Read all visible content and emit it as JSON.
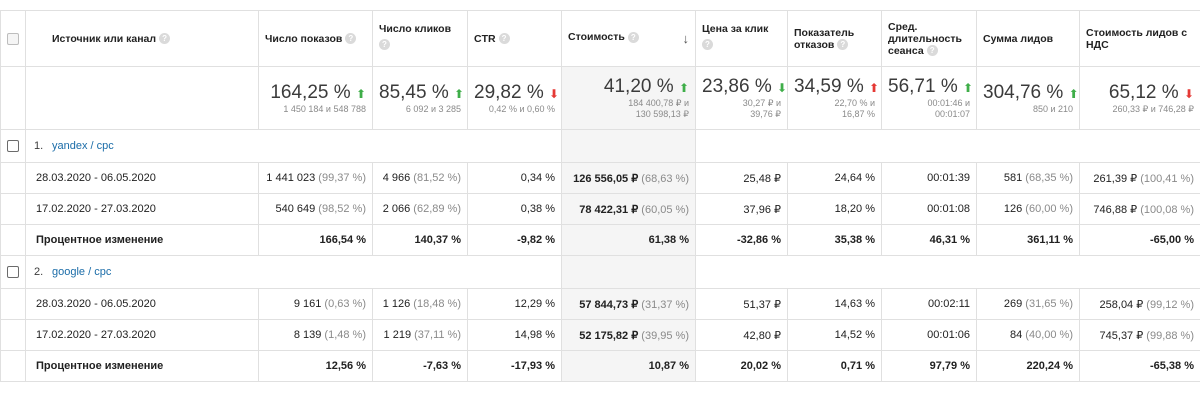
{
  "columns": {
    "source": "Источник или канал",
    "impressions": "Число показов",
    "clicks": "Число кликов",
    "ctr": "CTR",
    "cost": "Стоимость",
    "cpc": "Цена за клик",
    "bounce": "Показатель отказов",
    "session": "Сред. длительность сеанса",
    "leads": "Сумма лидов",
    "lead_cost": "Стоимость лидов с НДС"
  },
  "help_glyph": "?",
  "sort_glyph": "↓",
  "colors": {
    "up": "#3fae49",
    "down": "#e53935",
    "link": "#1a6ca8"
  },
  "summary": {
    "impressions": {
      "pct": "164,25 %",
      "dir": "up",
      "sub": "1 450 184 и 548 788"
    },
    "clicks": {
      "pct": "85,45 %",
      "dir": "up",
      "sub": "6 092 и 3 285"
    },
    "ctr": {
      "pct": "29,82 %",
      "dir": "down",
      "sub": "0,42 % и 0,60 %"
    },
    "cost": {
      "pct": "41,20 %",
      "dir": "up",
      "sub1": "184 400,78 ₽ и",
      "sub2": "130 598,13 ₽"
    },
    "cpc": {
      "pct": "23,86 %",
      "dir": "down",
      "sub1": "30,27 ₽ и",
      "sub2": "39,76 ₽"
    },
    "bounce": {
      "pct": "34,59 %",
      "dir": "up-red",
      "sub1": "22,70 % и",
      "sub2": "16,87 %"
    },
    "session": {
      "pct": "56,71 %",
      "dir": "up",
      "sub1": "00:01:46 и",
      "sub2": "00:01:07"
    },
    "leads": {
      "pct": "304,76 %",
      "dir": "up",
      "sub": "850 и 210"
    },
    "lead_cost": {
      "pct": "65,12 %",
      "dir": "down",
      "sub": "260,33 ₽ и 746,28 ₽"
    }
  },
  "groups": [
    {
      "num": "1.",
      "name": "yandex / cpc",
      "rows": [
        {
          "label": "28.03.2020 - 06.05.2020",
          "impressions": "1 441 023",
          "impressions_pct": "(99,37 %)",
          "clicks": "4 966",
          "clicks_pct": "(81,52 %)",
          "ctr": "0,34 %",
          "cost": "126 556,05 ₽",
          "cost_pct": "(68,63 %)",
          "cpc": "25,48 ₽",
          "bounce": "24,64 %",
          "session": "00:01:39",
          "leads": "581",
          "leads_pct": "(68,35 %)",
          "lead_cost": "261,39 ₽",
          "lead_cost_pct": "(100,41 %)"
        },
        {
          "label": "17.02.2020 - 27.03.2020",
          "impressions": "540 649",
          "impressions_pct": "(98,52 %)",
          "clicks": "2 066",
          "clicks_pct": "(62,89 %)",
          "ctr": "0,38 %",
          "cost": "78 422,31 ₽",
          "cost_pct": "(60,05 %)",
          "cpc": "37,96 ₽",
          "bounce": "18,20 %",
          "session": "00:01:08",
          "leads": "126",
          "leads_pct": "(60,00 %)",
          "lead_cost": "746,88 ₽",
          "lead_cost_pct": "(100,08 %)"
        }
      ],
      "change": {
        "label": "Процентное изменение",
        "impressions": "166,54 %",
        "clicks": "140,37 %",
        "ctr": "-9,82 %",
        "cost": "61,38 %",
        "cpc": "-32,86 %",
        "bounce": "35,38 %",
        "session": "46,31 %",
        "leads": "361,11 %",
        "lead_cost": "-65,00 %"
      }
    },
    {
      "num": "2.",
      "name": "google / cpc",
      "rows": [
        {
          "label": "28.03.2020 - 06.05.2020",
          "impressions": "9 161",
          "impressions_pct": "(0,63 %)",
          "clicks": "1 126",
          "clicks_pct": "(18,48 %)",
          "ctr": "12,29 %",
          "cost": "57 844,73 ₽",
          "cost_pct": "(31,37 %)",
          "cpc": "51,37 ₽",
          "bounce": "14,63 %",
          "session": "00:02:11",
          "leads": "269",
          "leads_pct": "(31,65 %)",
          "lead_cost": "258,04 ₽",
          "lead_cost_pct": "(99,12 %)"
        },
        {
          "label": "17.02.2020 - 27.03.2020",
          "impressions": "8 139",
          "impressions_pct": "(1,48 %)",
          "clicks": "1 219",
          "clicks_pct": "(37,11 %)",
          "ctr": "14,98 %",
          "cost": "52 175,82 ₽",
          "cost_pct": "(39,95 %)",
          "cpc": "42,80 ₽",
          "bounce": "14,52 %",
          "session": "00:01:06",
          "leads": "84",
          "leads_pct": "(40,00 %)",
          "lead_cost": "745,37 ₽",
          "lead_cost_pct": "(99,88 %)"
        }
      ],
      "change": {
        "label": "Процентное изменение",
        "impressions": "12,56 %",
        "clicks": "-7,63 %",
        "ctr": "-17,93 %",
        "cost": "10,87 %",
        "cpc": "20,02 %",
        "bounce": "0,71 %",
        "session": "97,79 %",
        "leads": "220,24 %",
        "lead_cost": "-65,38 %"
      }
    }
  ]
}
